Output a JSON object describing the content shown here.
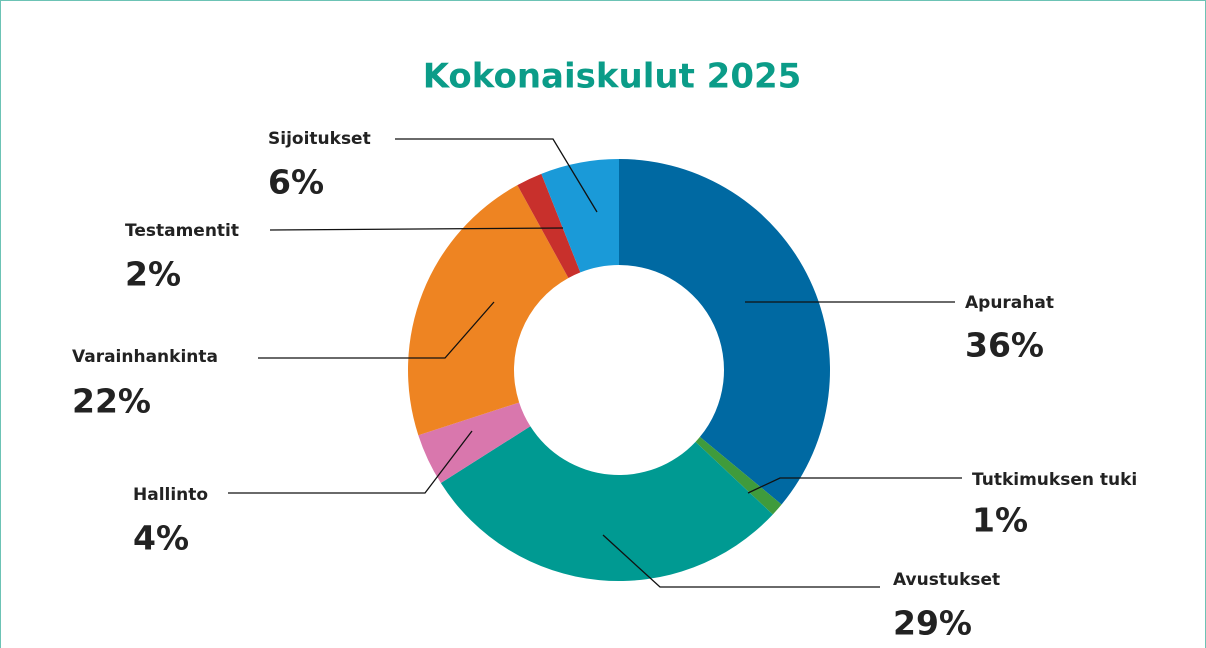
{
  "chart_data": {
    "type": "donut",
    "title": "Kokonaiskulut 2025",
    "categories": [
      "Apurahat",
      "Tutkimuksen tuki",
      "Avustukset",
      "Hallinto",
      "Varainhankinta",
      "Testamentit",
      "Sijoitukset"
    ],
    "values": [
      36,
      1,
      29,
      4,
      22,
      2,
      6
    ],
    "value_labels": [
      "36%",
      "1%",
      "29%",
      "4%",
      "22%",
      "2%",
      "6%"
    ],
    "colors": [
      "#0069a2",
      "#3f9b3c",
      "#009a92",
      "#d977ad",
      "#ee8422",
      "#c8302c",
      "#1a9ad8"
    ]
  }
}
